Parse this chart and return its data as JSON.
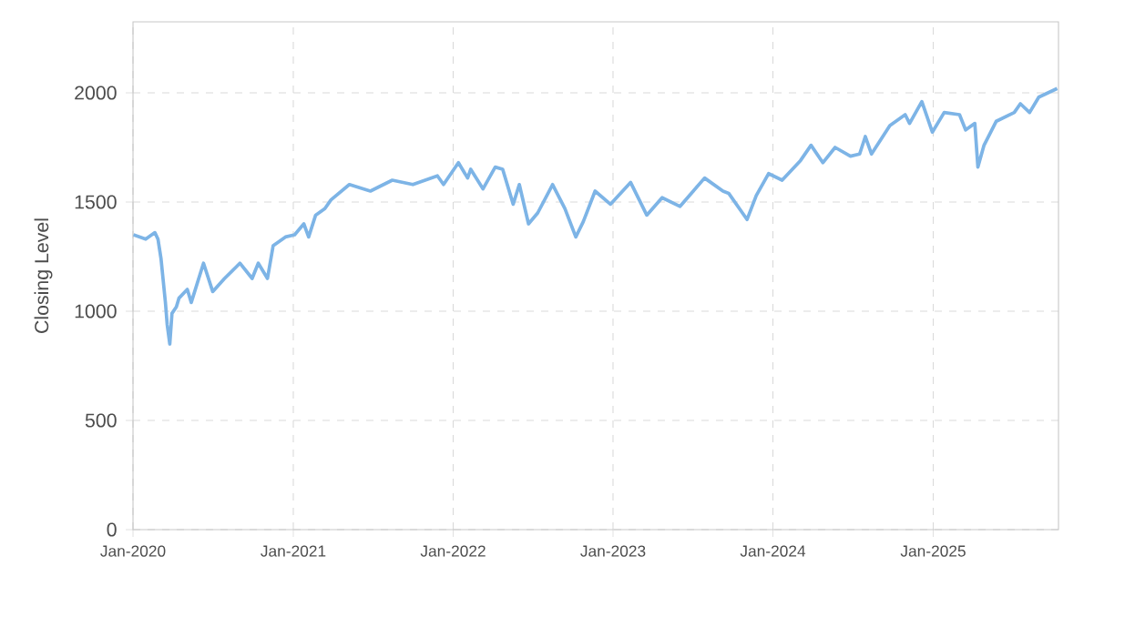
{
  "chart_data": {
    "type": "line",
    "ylabel": "Closing Level",
    "xlim": [
      "2020-01-01",
      "2025-10-14"
    ],
    "ylim": [
      0,
      2325
    ],
    "yticks": [
      0,
      500,
      1000,
      1500,
      2000
    ],
    "xticks": [
      {
        "value": "2020-01-01",
        "label": "Jan-2020"
      },
      {
        "value": "2021-01-01",
        "label": "Jan-2021"
      },
      {
        "value": "2022-01-01",
        "label": "Jan-2022"
      },
      {
        "value": "2023-01-01",
        "label": "Jan-2023"
      },
      {
        "value": "2024-01-01",
        "label": "Jan-2024"
      },
      {
        "value": "2025-01-01",
        "label": "Jan-2025"
      }
    ],
    "grid": true,
    "marker": "none",
    "line_style": "solid",
    "x": [
      "2020-01-02",
      "2020-01-30",
      "2020-02-20",
      "2020-02-27",
      "2020-03-05",
      "2020-03-15",
      "2020-03-19",
      "2020-03-25",
      "2020-03-30",
      "2020-04-09",
      "2020-04-15",
      "2020-05-04",
      "2020-05-13",
      "2020-06-10",
      "2020-07-01",
      "2020-07-28",
      "2020-09-01",
      "2020-09-29",
      "2020-10-13",
      "2020-11-03",
      "2020-11-16",
      "2020-12-14",
      "2021-01-04",
      "2021-01-25",
      "2021-02-05",
      "2021-02-21",
      "2021-03-14",
      "2021-03-28",
      "2021-05-09",
      "2021-06-26",
      "2021-08-15",
      "2021-10-01",
      "2021-11-26",
      "2021-12-10",
      "2022-01-13",
      "2022-02-03",
      "2022-02-10",
      "2022-03-10",
      "2022-04-07",
      "2022-04-24",
      "2022-05-18",
      "2022-06-01",
      "2022-06-22",
      "2022-07-13",
      "2022-08-16",
      "2022-09-13",
      "2022-10-08",
      "2022-10-25",
      "2022-11-21",
      "2022-12-26",
      "2023-02-10",
      "2023-03-19",
      "2023-04-23",
      "2023-06-03",
      "2023-07-29",
      "2023-09-09",
      "2023-09-22",
      "2023-11-03",
      "2023-11-24",
      "2023-12-22",
      "2024-01-22",
      "2024-03-04",
      "2024-03-28",
      "2024-04-24",
      "2024-05-22",
      "2024-06-26",
      "2024-07-17",
      "2024-07-30",
      "2024-08-13",
      "2024-09-24",
      "2024-10-29",
      "2024-11-08",
      "2024-12-06",
      "2024-12-30",
      "2025-01-26",
      "2025-03-02",
      "2025-03-16",
      "2025-04-06",
      "2025-04-13",
      "2025-04-27",
      "2025-05-25",
      "2025-07-05",
      "2025-07-19",
      "2025-08-09",
      "2025-08-30",
      "2025-10-11"
    ],
    "series": [
      {
        "color": "#7db4e6",
        "values": [
          1350,
          1330,
          1360,
          1330,
          1240,
          1040,
          940,
          850,
          990,
          1020,
          1060,
          1100,
          1040,
          1220,
          1090,
          1150,
          1220,
          1150,
          1220,
          1150,
          1300,
          1340,
          1350,
          1400,
          1340,
          1440,
          1470,
          1510,
          1580,
          1550,
          1600,
          1580,
          1620,
          1580,
          1680,
          1610,
          1650,
          1560,
          1660,
          1650,
          1490,
          1580,
          1400,
          1450,
          1580,
          1470,
          1340,
          1410,
          1550,
          1490,
          1590,
          1440,
          1520,
          1480,
          1610,
          1550,
          1540,
          1420,
          1530,
          1630,
          1600,
          1690,
          1760,
          1680,
          1750,
          1710,
          1720,
          1800,
          1720,
          1850,
          1900,
          1860,
          1960,
          1820,
          1910,
          1900,
          1830,
          1860,
          1660,
          1760,
          1870,
          1910,
          1950,
          1910,
          1980,
          2020
        ]
      }
    ]
  }
}
